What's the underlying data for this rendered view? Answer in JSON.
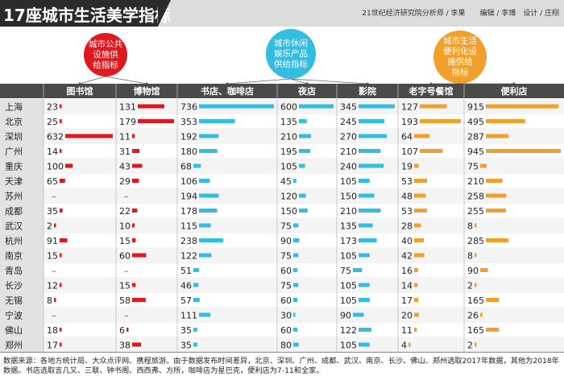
{
  "header": {
    "title": "17座城市生活美学指标",
    "credit": "21世纪经济研究院分析师 / 李果　　编辑 / 李博　设计 / 庄栩"
  },
  "groups": [
    {
      "label": "城市公共\n设施供\n给指标",
      "color": "#e1191e"
    },
    {
      "label": "城市休闲\n娱乐产品\n供给指标",
      "color": "#33bde0"
    },
    {
      "label": "城市生活\n便利化设\n施供给\n指标",
      "color": "#f2a02c"
    }
  ],
  "footer": {
    "note": "数据来源：各地方统计局、大众点评网、携程旅游。由于数据发布时间差异，北京、深圳、广州、成都、武汉、南京、长沙、佛山、郑州选取2017年数据，其他为2018年数据。书店选取言几又、三联、钟书阁、西西弗、方所，咖啡店为星巴克，便利店为7-11和全家。"
  },
  "chart_data": {
    "type": "table",
    "title": "17座城市生活美学指标",
    "categories": [
      "上海",
      "北京",
      "深圳",
      "广州",
      "重庆",
      "天津",
      "苏州",
      "成都",
      "武汉",
      "杭州",
      "南京",
      "青岛",
      "长沙",
      "无锡",
      "宁波",
      "佛山",
      "郑州"
    ],
    "missing_label": "–",
    "series": [
      {
        "name": "图书馆",
        "group": 0,
        "color": "#e1191e",
        "max": 632,
        "values": [
          23,
          25,
          632,
          14,
          100,
          65,
          null,
          35,
          2,
          91,
          15,
          null,
          12,
          8,
          null,
          18,
          17
        ]
      },
      {
        "name": "博物馆",
        "group": 0,
        "color": "#e1191e",
        "max": 179,
        "values": [
          131,
          179,
          11,
          31,
          43,
          29,
          null,
          22,
          10,
          15,
          60,
          null,
          15,
          58,
          null,
          6,
          38
        ]
      },
      {
        "name": "书店、咖啡店",
        "group": 1,
        "color": "#33bde0",
        "max": 736,
        "values": [
          736,
          353,
          192,
          180,
          68,
          106,
          194,
          178,
          115,
          238,
          122,
          51,
          46,
          57,
          111,
          35,
          35
        ]
      },
      {
        "name": "夜店",
        "group": 1,
        "color": "#33bde0",
        "max": 600,
        "values": [
          600,
          135,
          210,
          195,
          105,
          45,
          120,
          150,
          75,
          90,
          75,
          60,
          75,
          60,
          30,
          60,
          80
        ]
      },
      {
        "name": "影院",
        "group": 1,
        "color": "#33bde0",
        "max": 345,
        "values": [
          345,
          245,
          270,
          210,
          240,
          105,
          150,
          210,
          135,
          173,
          105,
          75,
          105,
          105,
          90,
          122,
          105
        ]
      },
      {
        "name": "老字号餐馆",
        "group": 2,
        "color": "#f2a02c",
        "max": 193,
        "values": [
          127,
          193,
          64,
          107,
          19,
          53,
          48,
          53,
          28,
          40,
          42,
          16,
          14,
          17,
          20,
          11,
          4
        ]
      },
      {
        "name": "便利店",
        "group": 2,
        "color": "#f2a02c",
        "max": 945,
        "values": [
          915,
          495,
          287,
          945,
          75,
          210,
          258,
          255,
          8,
          285,
          8,
          90,
          2,
          165,
          26,
          165,
          2
        ]
      }
    ]
  }
}
